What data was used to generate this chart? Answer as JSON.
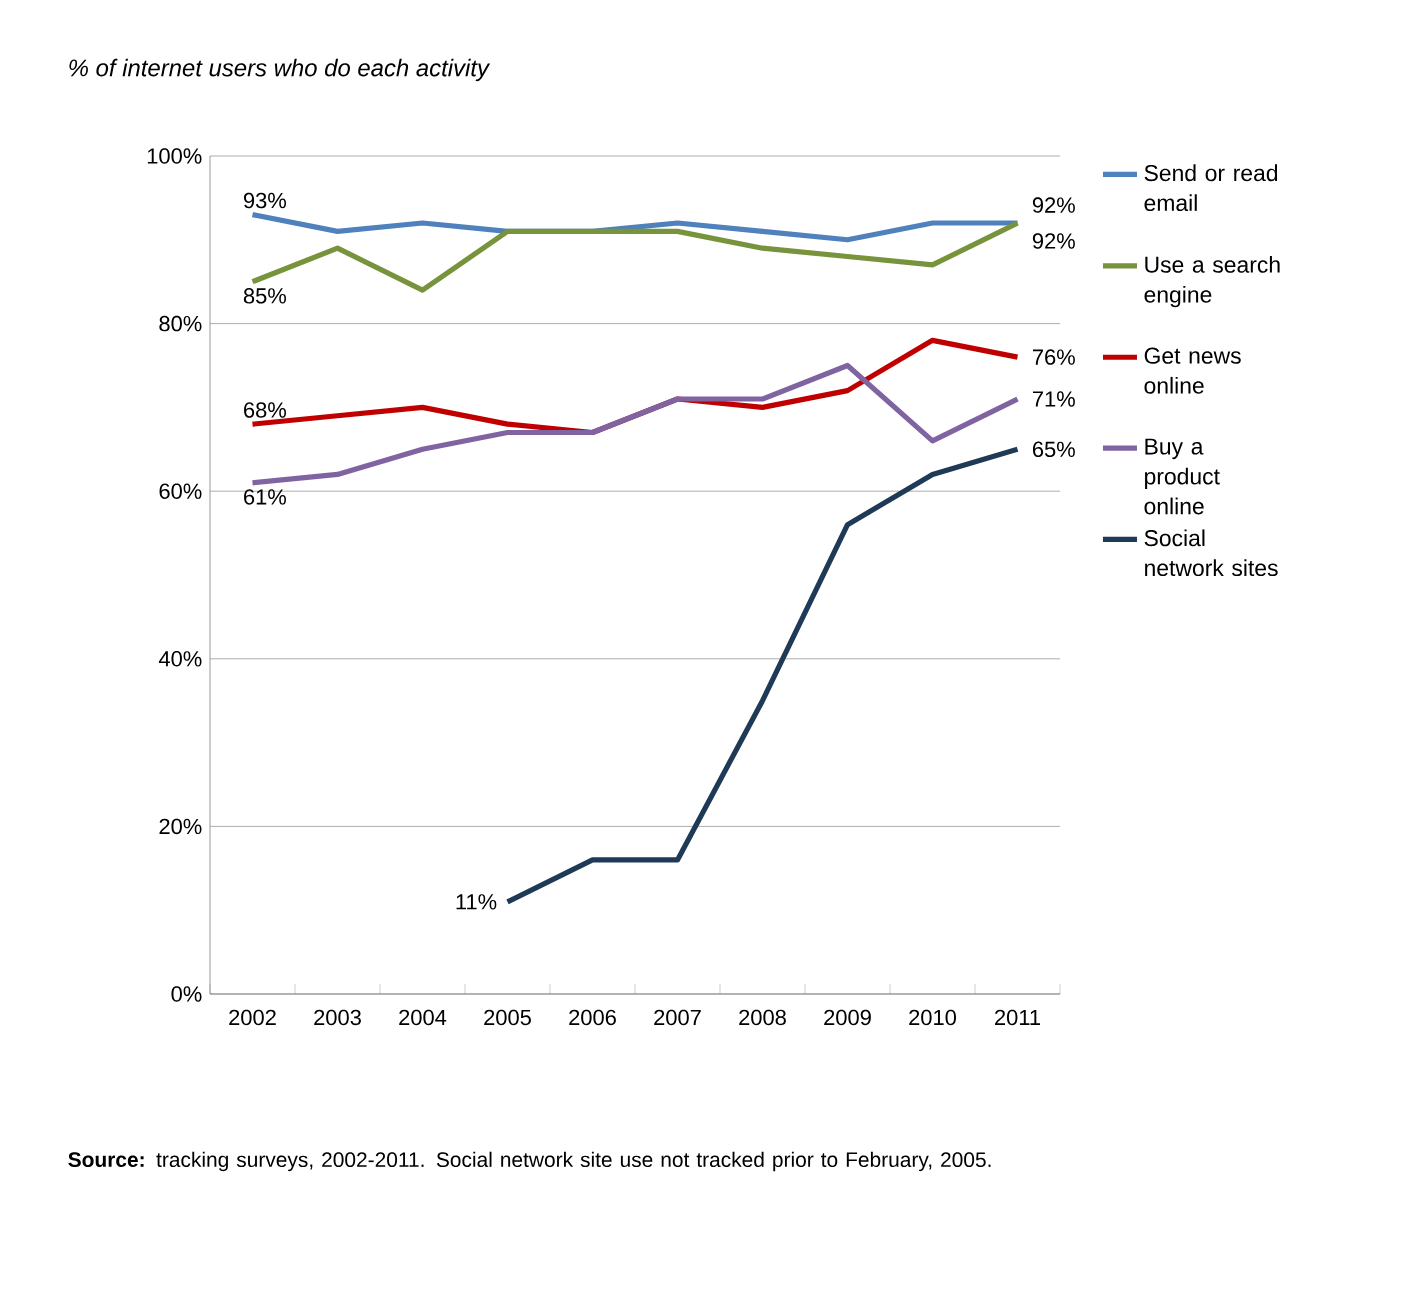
{
  "chart_data": {
    "type": "line",
    "title": "% of internet users who do each activity",
    "categories": [
      "2002",
      "2003",
      "2004",
      "2005",
      "2006",
      "2007",
      "2008",
      "2009",
      "2010",
      "2011"
    ],
    "series": [
      {
        "name": "Send or read email",
        "color": "#4f81bd",
        "values": [
          93,
          91,
          92,
          91,
          91,
          92,
          91,
          90,
          92,
          92
        ],
        "value_labels": [
          "93%",
          null,
          null,
          null,
          null,
          null,
          null,
          null,
          null,
          "92%"
        ]
      },
      {
        "name": "Use a search engine",
        "color": "#77933c",
        "values": [
          85,
          89,
          84,
          91,
          91,
          91,
          89,
          88,
          87,
          92
        ],
        "value_labels": [
          "85%",
          null,
          null,
          null,
          null,
          null,
          null,
          null,
          null,
          "92%"
        ]
      },
      {
        "name": "Get news online",
        "color": "#c00000",
        "values": [
          68,
          69,
          70,
          68,
          67,
          71,
          70,
          72,
          78,
          76
        ],
        "value_labels": [
          "68%",
          null,
          null,
          null,
          null,
          null,
          null,
          null,
          null,
          "76%"
        ]
      },
      {
        "name": "Buy a product online",
        "color": "#8064a2",
        "values": [
          61,
          62,
          65,
          67,
          67,
          71,
          71,
          75,
          66,
          71
        ],
        "value_labels": [
          "61%",
          null,
          null,
          null,
          null,
          null,
          null,
          null,
          null,
          "71%"
        ]
      },
      {
        "name": "Social network sites",
        "color": "#1f3a56",
        "values": [
          null,
          null,
          null,
          11,
          16,
          16,
          35,
          56,
          62,
          65
        ],
        "value_labels": [
          null,
          null,
          null,
          "11%",
          null,
          null,
          null,
          null,
          null,
          "65%"
        ]
      }
    ],
    "ylim": [
      0,
      100
    ],
    "yticks": [
      {
        "value": 0,
        "label": "0%"
      },
      {
        "value": 20,
        "label": "20%"
      },
      {
        "value": 40,
        "label": "40%"
      },
      {
        "value": 60,
        "label": "60%"
      },
      {
        "value": 80,
        "label": "80%"
      },
      {
        "value": 100,
        "label": "100%"
      }
    ],
    "grid": "y",
    "legend": "right",
    "marker": "none",
    "line_style": "solid",
    "annotations": [
      "**Source:** tracking surveys, 2002-2011. Social network site use not tracked prior to February, 2005."
    ]
  }
}
